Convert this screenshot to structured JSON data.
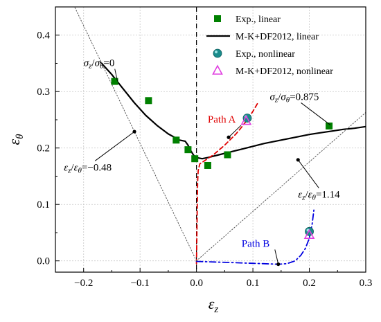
{
  "chart_data": {
    "type": "scatter",
    "title": "",
    "xlabel": "ε_z",
    "ylabel": "ε_θ",
    "xlim": [
      -0.25,
      0.3
    ],
    "ylim": [
      -0.02,
      0.45
    ],
    "x_ticks": [
      -0.2,
      -0.1,
      0.0,
      0.1,
      0.2,
      0.3
    ],
    "x_tick_labels": [
      "−0.2",
      "−0.1",
      "0.0",
      "0.1",
      "0.2",
      "0.3"
    ],
    "y_ticks": [
      0.0,
      0.1,
      0.2,
      0.3,
      0.4
    ],
    "y_tick_labels": [
      "0.0",
      "0.1",
      "0.2",
      "0.3",
      "0.4"
    ],
    "grid": true,
    "legend_position": "top-right",
    "legend": [
      {
        "label": "Exp., linear",
        "marker": "square",
        "color": "#008000"
      },
      {
        "label": "M-K+DF2012, linear",
        "marker": "line",
        "color": "#000000"
      },
      {
        "label": "Exp., nonlinear",
        "marker": "circle",
        "color": "#1a8c8c"
      },
      {
        "label": "M-K+DF2012, nonlinear",
        "marker": "triangle",
        "color": "#e040e0"
      }
    ],
    "series": [
      {
        "name": "Exp., linear",
        "kind": "scatter",
        "marker": "square",
        "color": "#008000",
        "points": [
          [
            -0.145,
            0.318
          ],
          [
            -0.085,
            0.284
          ],
          [
            -0.036,
            0.214
          ],
          [
            -0.015,
            0.197
          ],
          [
            -0.003,
            0.181
          ],
          [
            0.02,
            0.169
          ],
          [
            0.055,
            0.188
          ],
          [
            0.235,
            0.239
          ]
        ]
      },
      {
        "name": "M-K+DF2012, linear",
        "kind": "line",
        "color": "#000000",
        "dash": "solid",
        "points": [
          [
            -0.17,
            0.352
          ],
          [
            -0.15,
            0.33
          ],
          [
            -0.13,
            0.305
          ],
          [
            -0.11,
            0.28
          ],
          [
            -0.09,
            0.258
          ],
          [
            -0.07,
            0.24
          ],
          [
            -0.05,
            0.225
          ],
          [
            -0.03,
            0.214
          ],
          [
            -0.02,
            0.212
          ],
          [
            -0.015,
            0.205
          ],
          [
            -0.01,
            0.195
          ],
          [
            -0.005,
            0.187
          ],
          [
            0.0,
            0.183
          ],
          [
            0.01,
            0.181
          ],
          [
            0.02,
            0.183
          ],
          [
            0.04,
            0.188
          ],
          [
            0.06,
            0.193
          ],
          [
            0.08,
            0.198
          ],
          [
            0.1,
            0.203
          ],
          [
            0.12,
            0.208
          ],
          [
            0.14,
            0.212
          ],
          [
            0.16,
            0.216
          ],
          [
            0.18,
            0.22
          ],
          [
            0.2,
            0.224
          ],
          [
            0.22,
            0.227
          ],
          [
            0.24,
            0.23
          ],
          [
            0.26,
            0.233
          ],
          [
            0.28,
            0.235
          ],
          [
            0.3,
            0.238
          ]
        ]
      },
      {
        "name": "Exp., nonlinear",
        "kind": "scatter",
        "marker": "circle",
        "color": "#1a8c8c",
        "points": [
          [
            0.09,
            0.253
          ],
          [
            0.2,
            0.052
          ]
        ]
      },
      {
        "name": "M-K+DF2012, nonlinear",
        "kind": "scatter",
        "marker": "triangle",
        "color": "#e040e0",
        "points": [
          [
            0.088,
            0.248
          ],
          [
            0.2,
            0.046
          ]
        ]
      },
      {
        "name": "Path A",
        "kind": "line",
        "color": "#e00000",
        "dash": "dashed",
        "points": [
          [
            0.0,
            -0.005
          ],
          [
            0.0005,
            0.03
          ],
          [
            0.001,
            0.07
          ],
          [
            0.0015,
            0.11
          ],
          [
            0.002,
            0.14
          ],
          [
            0.003,
            0.16
          ],
          [
            0.006,
            0.172
          ],
          [
            0.015,
            0.178
          ],
          [
            0.03,
            0.188
          ],
          [
            0.05,
            0.205
          ],
          [
            0.06,
            0.215
          ],
          [
            0.07,
            0.225
          ],
          [
            0.08,
            0.237
          ],
          [
            0.09,
            0.25
          ],
          [
            0.1,
            0.265
          ],
          [
            0.11,
            0.282
          ]
        ]
      },
      {
        "name": "Path B",
        "kind": "line",
        "color": "#0000e0",
        "dash": "dashdot",
        "points": [
          [
            0.0,
            -0.001
          ],
          [
            0.03,
            -0.002
          ],
          [
            0.06,
            -0.003
          ],
          [
            0.09,
            -0.004
          ],
          [
            0.12,
            -0.005
          ],
          [
            0.145,
            -0.006
          ],
          [
            0.16,
            -0.005
          ],
          [
            0.175,
            0.0
          ],
          [
            0.185,
            0.01
          ],
          [
            0.193,
            0.022
          ],
          [
            0.2,
            0.04
          ],
          [
            0.205,
            0.065
          ],
          [
            0.208,
            0.09
          ]
        ]
      },
      {
        "name": "Ratio ε_z/ε_θ=−0.48",
        "kind": "line",
        "color": "#555555",
        "dash": "dotted",
        "points": [
          [
            0.0,
            0.0
          ],
          [
            -0.216,
            0.45
          ]
        ]
      },
      {
        "name": "Ratio ε_z/ε_θ=1.14",
        "kind": "line",
        "color": "#555555",
        "dash": "dotted",
        "points": [
          [
            0.0,
            0.0
          ],
          [
            0.3,
            0.263
          ]
        ]
      },
      {
        "name": "Loading direction markers",
        "kind": "scatter",
        "marker": "dot",
        "color": "#000000",
        "points": [
          [
            -0.11,
            0.229
          ],
          [
            0.18,
            0.179
          ],
          [
            0.057,
            0.219
          ],
          [
            0.145,
            -0.006
          ]
        ]
      }
    ],
    "vertical_reference_line": {
      "x": 0.0,
      "dash": "dashed",
      "color": "#000000"
    },
    "annotations": [
      {
        "name": "sigma-ratio-0",
        "text": "σz/σθ=0",
        "at": [
          -0.2,
          0.345
        ],
        "arrow_to": [
          -0.14,
          0.318
        ]
      },
      {
        "name": "sigma-ratio-0875",
        "text": "σz/σθ=0.875",
        "at": [
          0.13,
          0.285
        ],
        "arrow_to": [
          0.237,
          0.241
        ]
      },
      {
        "name": "strain-ratio-neg048",
        "text": "εz/εθ=−0.48",
        "at": [
          -0.235,
          0.16
        ],
        "arrow_to": [
          -0.11,
          0.229
        ]
      },
      {
        "name": "strain-ratio-114",
        "text": "εz/εθ=1.14",
        "at": [
          0.18,
          0.112
        ],
        "arrow_to": [
          0.18,
          0.179
        ]
      },
      {
        "name": "path-a-label",
        "text": "Path A",
        "at": [
          0.02,
          0.245
        ],
        "arrow_to": [
          0.057,
          0.219
        ]
      },
      {
        "name": "path-b-label",
        "text": "Path B",
        "at": [
          0.08,
          0.025
        ],
        "arrow_to": [
          0.145,
          -0.006
        ]
      }
    ]
  }
}
